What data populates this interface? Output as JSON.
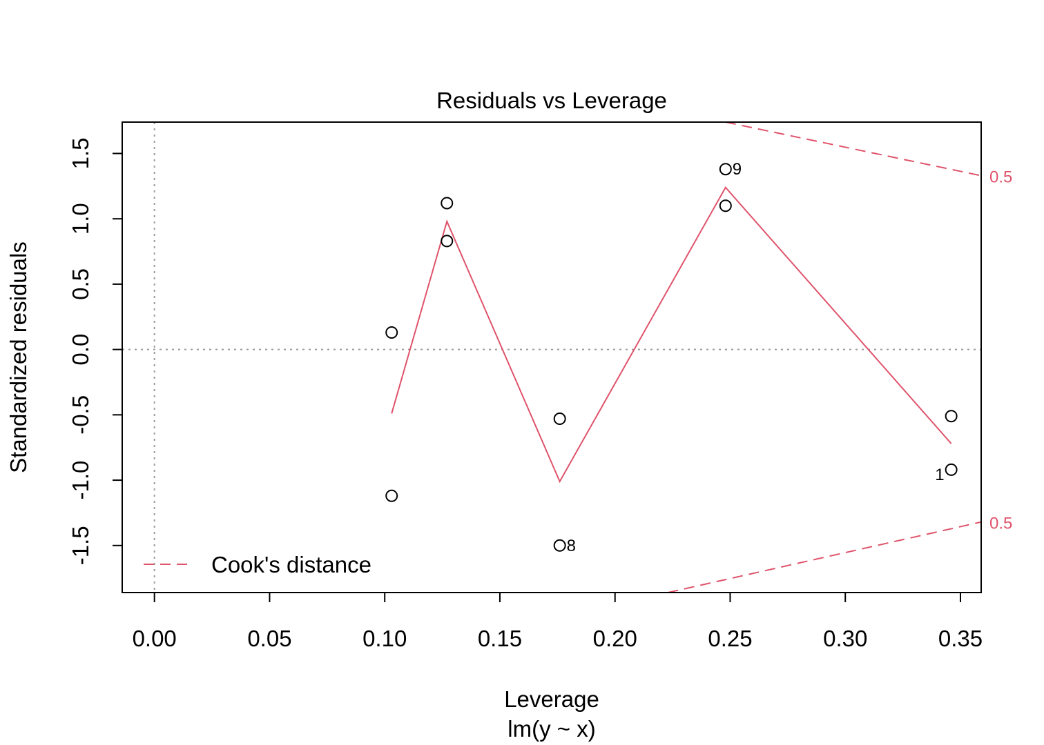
{
  "chart_data": {
    "type": "scatter",
    "title": "Residuals vs Leverage",
    "xlabel": "Leverage",
    "subtitle": "lm(y ~ x)",
    "ylabel": "Standardized residuals",
    "xlim": [
      -0.014,
      0.359
    ],
    "ylim": [
      -1.86,
      1.74
    ],
    "xticks": [
      0.0,
      0.05,
      0.1,
      0.15,
      0.2,
      0.25,
      0.3,
      0.35
    ],
    "xtick_labels": [
      "0.00",
      "0.05",
      "0.10",
      "0.15",
      "0.20",
      "0.25",
      "0.30",
      "0.35"
    ],
    "yticks": [
      -1.5,
      -1.0,
      -0.5,
      0.0,
      0.5,
      1.0,
      1.5
    ],
    "ytick_labels": [
      "-1.5",
      "-1.0",
      "-0.5",
      "0.0",
      "0.5",
      "1.0",
      "1.5"
    ],
    "points": [
      {
        "x": 0.103,
        "y": 0.13
      },
      {
        "x": 0.103,
        "y": -1.12
      },
      {
        "x": 0.127,
        "y": 1.12
      },
      {
        "x": 0.127,
        "y": 0.83
      },
      {
        "x": 0.176,
        "y": -0.53
      },
      {
        "x": 0.176,
        "y": -1.5,
        "label": "8",
        "label_side": "right"
      },
      {
        "x": 0.248,
        "y": 1.38,
        "label": "9",
        "label_side": "right"
      },
      {
        "x": 0.248,
        "y": 1.1
      },
      {
        "x": 0.346,
        "y": -0.51
      },
      {
        "x": 0.346,
        "y": -0.92,
        "label": "1",
        "label_side": "left"
      }
    ],
    "smooth_line": {
      "color": "#DF536B",
      "x": [
        0.103,
        0.127,
        0.176,
        0.248,
        0.346
      ],
      "y": [
        -0.49,
        0.98,
        -1.01,
        1.24,
        -0.72
      ]
    },
    "cooks_contours": [
      {
        "level_label": "0.5",
        "sign": 1,
        "x": [
          0.248,
          0.359
        ],
        "y": [
          1.74,
          1.33
        ]
      },
      {
        "level_label": "0.5",
        "sign": -1,
        "x": [
          0.223,
          0.359
        ],
        "y": [
          -1.86,
          -1.32
        ]
      }
    ],
    "reference_lines": {
      "h": 0,
      "v": 0,
      "style": "dotted",
      "color": "#999999"
    },
    "legend": {
      "position": "bottom-left",
      "entries": [
        {
          "label": "Cook's distance",
          "style": "dashed",
          "color": "#DF536B"
        }
      ]
    },
    "colors": {
      "points": "#000000",
      "accent": "#DF536B",
      "reference": "#999999"
    }
  }
}
